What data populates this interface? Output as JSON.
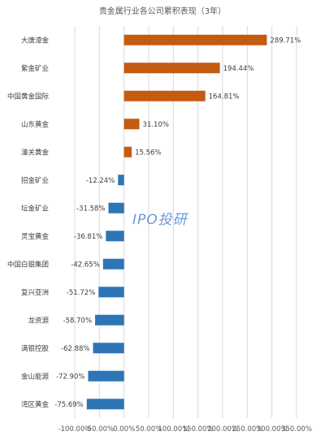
{
  "chart_data": {
    "type": "bar",
    "orientation": "horizontal",
    "title": "贵金属行业各公司累积表现（3年）",
    "categories": [
      "大唐濠金",
      "紫金矿业",
      "中国黄金国际",
      "山东黄金",
      "潼关黄金",
      "招金矿业",
      "坛金矿业",
      "灵宝黄金",
      "中国白银集团",
      "复兴亚洲",
      "龙资源",
      "满银控股",
      "金山能源",
      "湾区黄金"
    ],
    "values": [
      289.71,
      194.44,
      164.81,
      31.1,
      15.56,
      -12.24,
      -31.58,
      -36.81,
      -42.65,
      -51.72,
      -58.7,
      -62.88,
      -72.9,
      -75.69
    ],
    "data_labels": [
      "289.71%",
      "194.44%",
      "164.81%",
      "31.10%",
      "15.56%",
      "-12.24%",
      "-31.58%",
      "-36.81%",
      "-42.65%",
      "-51.72%",
      "-58.70%",
      "-62.88%",
      "-72.90%",
      "-75.69%"
    ],
    "xlim": [
      -100,
      350
    ],
    "xticks": [
      -100,
      -50,
      0,
      50,
      100,
      150,
      200,
      250,
      300,
      350
    ],
    "xtick_labels": [
      "-100.00%",
      "-50.00%",
      "0.00%",
      "50.00%",
      "100.00%",
      "150.00%",
      "200.00%",
      "250.00%",
      "300.00%",
      "350.00%"
    ],
    "grid": true,
    "colors": {
      "positive": "#c55a11",
      "negative": "#2e75b6"
    }
  },
  "watermark": "IPO投研"
}
